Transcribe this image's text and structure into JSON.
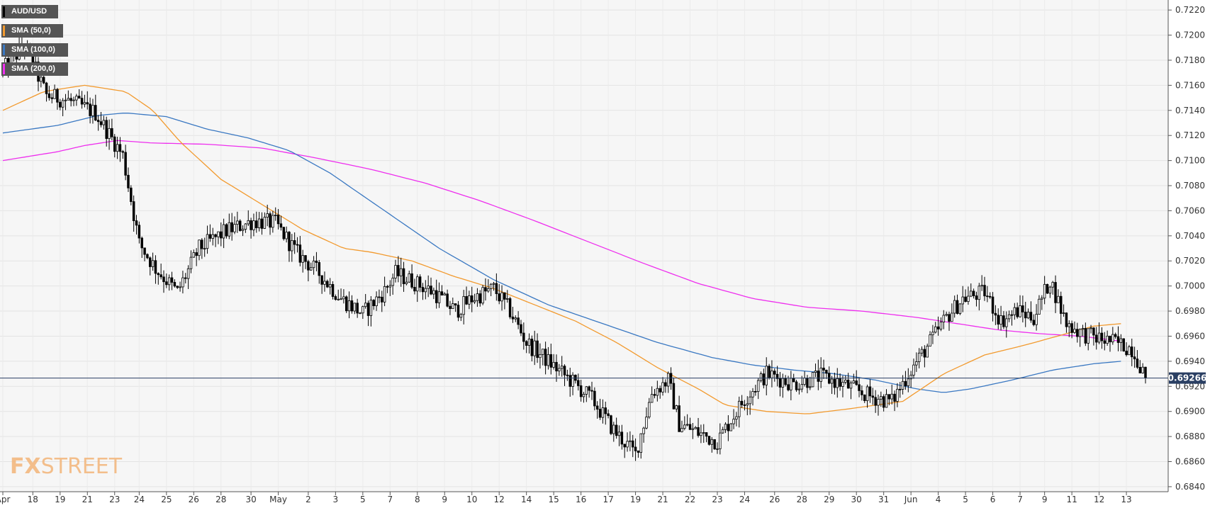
{
  "chart_data": {
    "type": "candlestick",
    "symbol": "AUD/USD",
    "legend": [
      {
        "label": "AUD/USD",
        "color": "#000000"
      },
      {
        "label": "SMA (50,0)",
        "color": "#f29a2e"
      },
      {
        "label": "SMA (100,0)",
        "color": "#3a78c2"
      },
      {
        "label": "SMA (200,0)",
        "color": "#ee2eee"
      }
    ],
    "ylim": [
      0.6836,
      0.7228
    ],
    "y_ticks": [
      "0.7220",
      "0.7200",
      "0.7180",
      "0.7160",
      "0.7140",
      "0.7120",
      "0.7100",
      "0.7080",
      "0.7060",
      "0.7040",
      "0.7020",
      "0.7000",
      "0.6980",
      "0.6960",
      "0.6940",
      "0.6920",
      "0.6900",
      "0.6880",
      "0.6860",
      "0.6840"
    ],
    "x_ticks": [
      "Apr",
      "18",
      "19",
      "21",
      "23",
      "24",
      "25",
      "26",
      "28",
      "30",
      "May",
      "2",
      "3",
      "5",
      "7",
      "8",
      "9",
      "10",
      "12",
      "14",
      "15",
      "16",
      "17",
      "19",
      "21",
      "22",
      "23",
      "24",
      "26",
      "28",
      "29",
      "30",
      "31",
      "Jun",
      "4",
      "5",
      "6",
      "7",
      "9",
      "11",
      "12",
      "13"
    ],
    "x_tick_bar_index": [
      0,
      11,
      21,
      31,
      41,
      50,
      60,
      70,
      80,
      91,
      101,
      112,
      122,
      132,
      142,
      152,
      162,
      172,
      182,
      192,
      202,
      212,
      222,
      232,
      242,
      252,
      262,
      272,
      283,
      293,
      303,
      313,
      323,
      333,
      343,
      353,
      363,
      373,
      382,
      392,
      402,
      412
    ],
    "bar_count": 420,
    "anchors": [
      [
        0,
        0.7172
      ],
      [
        8,
        0.7192
      ],
      [
        16,
        0.7152
      ],
      [
        24,
        0.7148
      ],
      [
        34,
        0.7138
      ],
      [
        44,
        0.7104
      ],
      [
        50,
        0.7034
      ],
      [
        56,
        0.7014
      ],
      [
        64,
        0.6995
      ],
      [
        72,
        0.703
      ],
      [
        82,
        0.7044
      ],
      [
        92,
        0.7052
      ],
      [
        100,
        0.705
      ],
      [
        108,
        0.7026
      ],
      [
        116,
        0.701
      ],
      [
        124,
        0.699
      ],
      [
        132,
        0.6978
      ],
      [
        140,
        0.6996
      ],
      [
        144,
        0.701
      ],
      [
        150,
        0.7004
      ],
      [
        158,
        0.6995
      ],
      [
        166,
        0.698
      ],
      [
        172,
        0.699
      ],
      [
        180,
        0.6998
      ],
      [
        186,
        0.698
      ],
      [
        192,
        0.6955
      ],
      [
        200,
        0.694
      ],
      [
        208,
        0.6925
      ],
      [
        216,
        0.691
      ],
      [
        224,
        0.6885
      ],
      [
        232,
        0.6866
      ],
      [
        238,
        0.6915
      ],
      [
        244,
        0.6925
      ],
      [
        248,
        0.689
      ],
      [
        256,
        0.6882
      ],
      [
        262,
        0.6876
      ],
      [
        266,
        0.689
      ],
      [
        272,
        0.691
      ],
      [
        280,
        0.693
      ],
      [
        290,
        0.6922
      ],
      [
        300,
        0.6928
      ],
      [
        310,
        0.692
      ],
      [
        318,
        0.6912
      ],
      [
        326,
        0.6908
      ],
      [
        332,
        0.693
      ],
      [
        340,
        0.6955
      ],
      [
        346,
        0.6975
      ],
      [
        352,
        0.699
      ],
      [
        360,
        0.6995
      ],
      [
        366,
        0.6972
      ],
      [
        372,
        0.698
      ],
      [
        378,
        0.6975
      ],
      [
        384,
        0.7005
      ],
      [
        390,
        0.697
      ],
      [
        396,
        0.6962
      ],
      [
        402,
        0.6958
      ],
      [
        408,
        0.6955
      ],
      [
        414,
        0.695
      ],
      [
        419,
        0.6929
      ]
    ],
    "sma50": [
      [
        0,
        0.714
      ],
      [
        15,
        0.7155
      ],
      [
        30,
        0.716
      ],
      [
        45,
        0.7155
      ],
      [
        55,
        0.714
      ],
      [
        65,
        0.7115
      ],
      [
        80,
        0.7085
      ],
      [
        95,
        0.7065
      ],
      [
        110,
        0.7045
      ],
      [
        125,
        0.703
      ],
      [
        135,
        0.7027
      ],
      [
        150,
        0.702
      ],
      [
        165,
        0.7008
      ],
      [
        180,
        0.6998
      ],
      [
        195,
        0.6985
      ],
      [
        210,
        0.6972
      ],
      [
        225,
        0.6955
      ],
      [
        240,
        0.6935
      ],
      [
        255,
        0.6918
      ],
      [
        265,
        0.6905
      ],
      [
        280,
        0.69
      ],
      [
        295,
        0.6898
      ],
      [
        310,
        0.6902
      ],
      [
        330,
        0.6908
      ],
      [
        345,
        0.693
      ],
      [
        360,
        0.6945
      ],
      [
        375,
        0.6953
      ],
      [
        390,
        0.6962
      ],
      [
        400,
        0.6968
      ],
      [
        410,
        0.697
      ]
    ],
    "sma100": [
      [
        0,
        0.7122
      ],
      [
        20,
        0.7128
      ],
      [
        35,
        0.7136
      ],
      [
        45,
        0.7138
      ],
      [
        60,
        0.7135
      ],
      [
        75,
        0.7125
      ],
      [
        90,
        0.7118
      ],
      [
        105,
        0.7108
      ],
      [
        120,
        0.709
      ],
      [
        140,
        0.706
      ],
      [
        160,
        0.703
      ],
      [
        180,
        0.7005
      ],
      [
        200,
        0.6985
      ],
      [
        220,
        0.697
      ],
      [
        240,
        0.6955
      ],
      [
        260,
        0.6943
      ],
      [
        275,
        0.6937
      ],
      [
        290,
        0.6933
      ],
      [
        305,
        0.693
      ],
      [
        320,
        0.6925
      ],
      [
        335,
        0.6918
      ],
      [
        345,
        0.6915
      ],
      [
        355,
        0.6918
      ],
      [
        370,
        0.6925
      ],
      [
        385,
        0.6933
      ],
      [
        400,
        0.6938
      ],
      [
        410,
        0.694
      ]
    ],
    "sma200": [
      [
        0,
        0.71
      ],
      [
        20,
        0.7107
      ],
      [
        30,
        0.7112
      ],
      [
        42,
        0.7116
      ],
      [
        55,
        0.7114
      ],
      [
        75,
        0.7113
      ],
      [
        95,
        0.711
      ],
      [
        115,
        0.7102
      ],
      [
        135,
        0.7093
      ],
      [
        155,
        0.7082
      ],
      [
        175,
        0.7068
      ],
      [
        195,
        0.7052
      ],
      [
        215,
        0.7035
      ],
      [
        235,
        0.7018
      ],
      [
        255,
        0.7002
      ],
      [
        275,
        0.699
      ],
      [
        295,
        0.6983
      ],
      [
        315,
        0.698
      ],
      [
        335,
        0.6975
      ],
      [
        350,
        0.697
      ],
      [
        365,
        0.6965
      ],
      [
        380,
        0.6962
      ],
      [
        395,
        0.696
      ],
      [
        410,
        0.6956
      ]
    ],
    "last_price": 0.69266,
    "last_price_label": "0.69266",
    "grid": true
  },
  "colors": {
    "bull": "#ffffff",
    "bear": "#000000",
    "wick": "#000000",
    "sma50": "#f29a2e",
    "sma100": "#3a78c2",
    "sma200": "#ee2eee",
    "price_line": "#2a3f63",
    "price_tag_bg": "#2a3f63"
  },
  "watermark": {
    "part1": "FX",
    "part2": "STREET"
  }
}
